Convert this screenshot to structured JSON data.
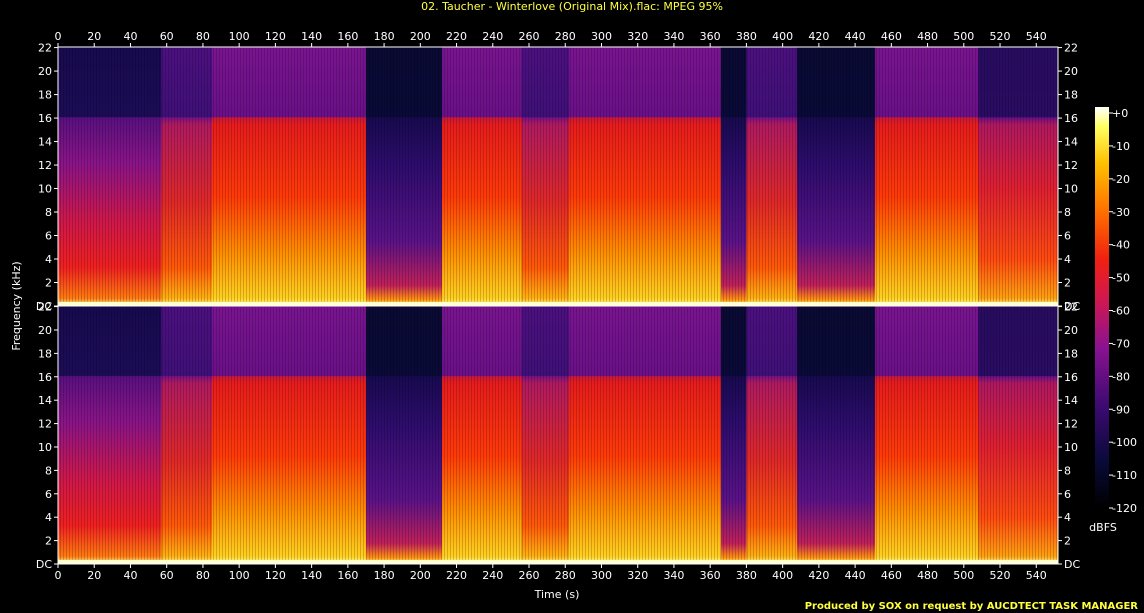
{
  "chart_data": {
    "type": "heatmap",
    "title": "02. Taucher - Winterlove (Original Mix).flac: MPEG 95%",
    "xlabel": "Time (s)",
    "ylabel": "Frequency (kHz)",
    "credit": "Produced by SOX on request by AUCDTECT TASK MANAGER",
    "colorbar_label": "dBFS",
    "x_ticks": [
      "0",
      "20",
      "40",
      "60",
      "80",
      "100",
      "120",
      "140",
      "160",
      "180",
      "200",
      "220",
      "240",
      "260",
      "280",
      "300",
      "320",
      "340",
      "360",
      "380",
      "400",
      "420",
      "440",
      "460",
      "480",
      "500",
      "520",
      "540"
    ],
    "xlim": [
      0,
      552
    ],
    "y_ticks": [
      "DC",
      "2",
      "4",
      "6",
      "8",
      "10",
      "12",
      "14",
      "16",
      "18",
      "20",
      "22"
    ],
    "ylim_khz": [
      0,
      22.05
    ],
    "colorbar_ticks": [
      "+0",
      "-10",
      "-20",
      "-30",
      "-40",
      "-50",
      "-60",
      "-70",
      "-80",
      "-90",
      "-100",
      "-110",
      "-120"
    ],
    "colorbar_range_db": [
      -120,
      0
    ],
    "channels": 2,
    "lowpass_cutoff_khz": 16,
    "segments": [
      {
        "t0": 0,
        "t1": 57,
        "level": "intro"
      },
      {
        "t0": 57,
        "t1": 85,
        "level": "mid"
      },
      {
        "t0": 85,
        "t1": 170,
        "level": "loud"
      },
      {
        "t0": 170,
        "t1": 212,
        "level": "break"
      },
      {
        "t0": 212,
        "t1": 256,
        "level": "loud"
      },
      {
        "t0": 256,
        "t1": 282,
        "level": "mid"
      },
      {
        "t0": 282,
        "t1": 366,
        "level": "loud"
      },
      {
        "t0": 366,
        "t1": 380,
        "level": "break"
      },
      {
        "t0": 380,
        "t1": 408,
        "level": "mid"
      },
      {
        "t0": 408,
        "t1": 451,
        "level": "break"
      },
      {
        "t0": 451,
        "t1": 508,
        "level": "loud"
      },
      {
        "t0": 508,
        "t1": 552,
        "level": "outro"
      }
    ]
  }
}
